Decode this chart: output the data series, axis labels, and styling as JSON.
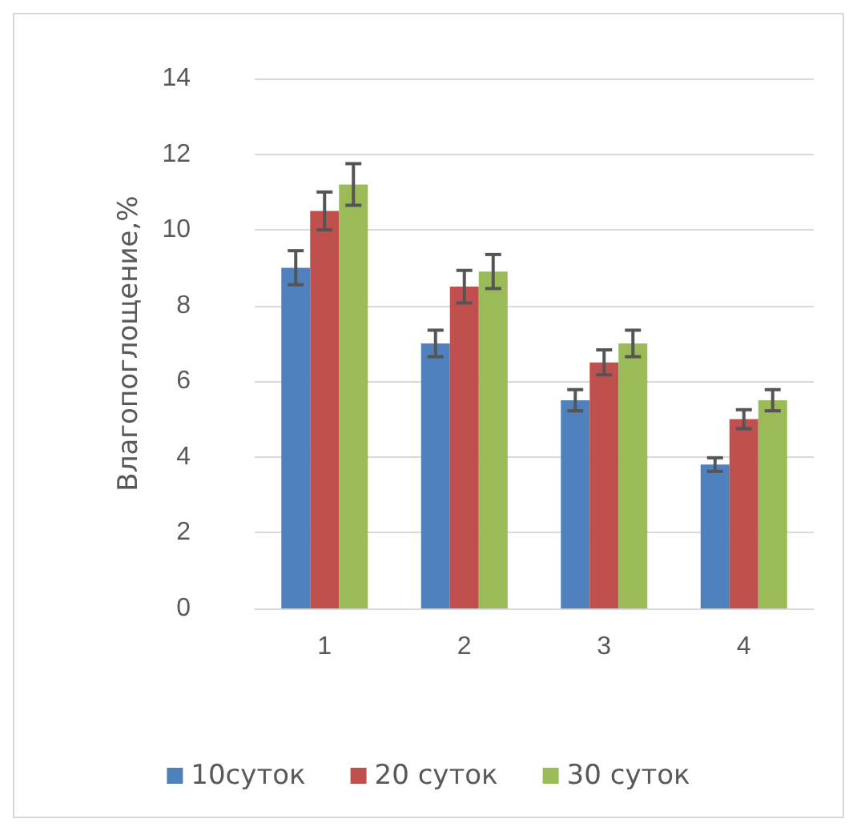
{
  "chart_data": {
    "type": "bar",
    "ylabel": "Влагопоглощение,%",
    "categories": [
      "1",
      "2",
      "3",
      "4"
    ],
    "series": [
      {
        "name": "10суток",
        "color": "#4f81bd",
        "values": [
          9,
          7,
          5.5,
          3.8
        ],
        "errors": [
          0.45,
          0.35,
          0.28,
          0.18
        ]
      },
      {
        "name": "20 суток",
        "color": "#c0504d",
        "values": [
          10.5,
          8.5,
          6.5,
          5
        ],
        "errors": [
          0.5,
          0.43,
          0.33,
          0.25
        ]
      },
      {
        "name": "30 суток",
        "color": "#9bbb59",
        "values": [
          11.2,
          8.9,
          7,
          5.5
        ],
        "errors": [
          0.55,
          0.45,
          0.35,
          0.28
        ]
      }
    ],
    "ylim": [
      0,
      14
    ],
    "yticks": [
      0,
      2,
      4,
      6,
      8,
      10,
      12,
      14
    ],
    "grid": "y",
    "legend": "bottom"
  }
}
